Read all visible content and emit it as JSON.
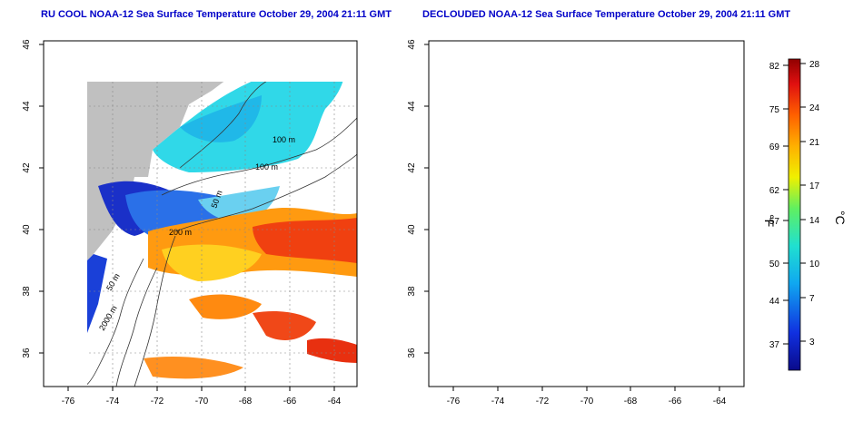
{
  "panels": [
    {
      "title": "RU COOL NOAA-12 Sea Surface Temperature October 29, 2004 21:11 GMT"
    },
    {
      "title": "DECLOUDED NOAA-12 Sea Surface Temperature October 29, 2004 21:11 GMT"
    }
  ],
  "map": {
    "lon_ticks": [
      "-76",
      "-74",
      "-72",
      "-70",
      "-68",
      "-66",
      "-64"
    ],
    "lat_ticks": [
      "36",
      "38",
      "40",
      "42",
      "44",
      "46"
    ],
    "contour_labels": [
      "100 m",
      "100 m",
      "50 m",
      "200 m",
      "50 m",
      "2000 m"
    ]
  },
  "colorbar": {
    "f_label": "°F",
    "c_label": "°C",
    "f_ticks": [
      "82",
      "75",
      "69",
      "62",
      "57",
      "50",
      "44",
      "37"
    ],
    "c_ticks": [
      "28",
      "24",
      "21",
      "17",
      "14",
      "10",
      "7",
      "3"
    ]
  },
  "colors": {
    "title": "#0000c8",
    "land": "#c0c0c0",
    "cloud": "#ffffff",
    "cold": "#1020c0",
    "cool": "#20c8e0",
    "mid": "#ffd000",
    "warm": "#ff8000",
    "hot": "#e02010"
  }
}
